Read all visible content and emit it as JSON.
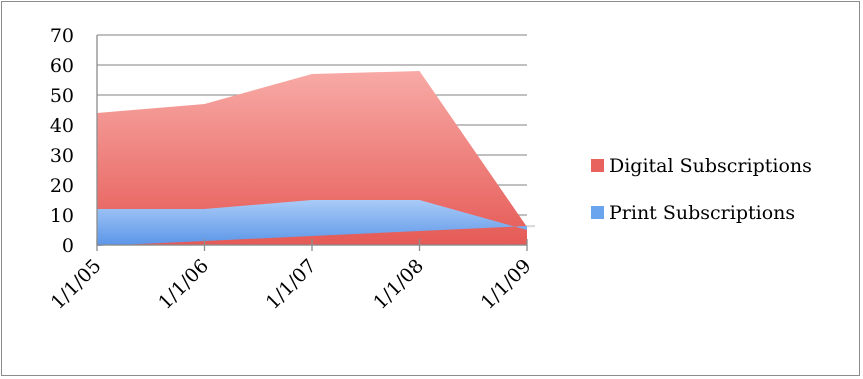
{
  "chart_data": {
    "type": "area",
    "stacked": true,
    "x": [
      "1/1/05",
      "1/1/06",
      "1/1/07",
      "1/1/08",
      "1/1/09"
    ],
    "series": [
      {
        "name": "Print Subscriptions",
        "values": [
          12,
          12,
          15,
          15,
          5
        ],
        "color": "#6aa3ee"
      },
      {
        "name": "Digital Subscriptions",
        "values": [
          32,
          35,
          42,
          43,
          1
        ],
        "color": "#e8625e"
      }
    ],
    "ylim": [
      0,
      70
    ],
    "yticks": [
      0,
      10,
      20,
      30,
      40,
      50,
      60,
      70
    ],
    "grid": true,
    "legend_position": "right"
  }
}
